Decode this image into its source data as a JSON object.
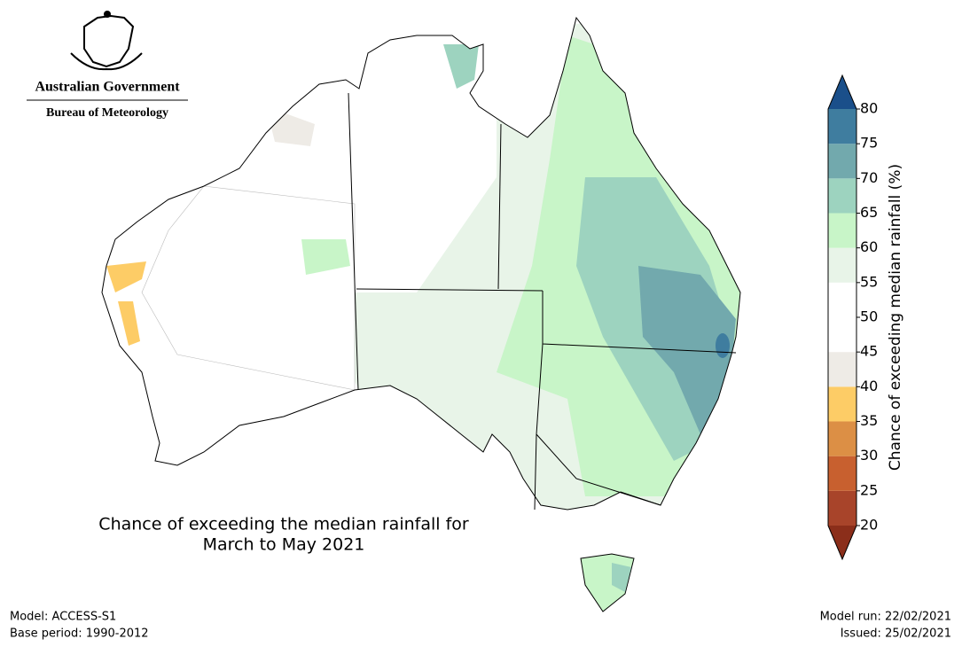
{
  "header": {
    "government": "Australian Government",
    "agency": "Bureau of Meteorology"
  },
  "map": {
    "title": [
      "Chance of exceeding the median rainfall for",
      "March to May 2021"
    ]
  },
  "colorbar": {
    "label": "Chance of exceeding median rainfall (%)",
    "lim": [
      20,
      80
    ],
    "ticks": [
      20,
      25,
      30,
      35,
      40,
      45,
      50,
      55,
      60,
      65,
      70,
      75,
      80
    ],
    "band_colors": [
      "#a8442a",
      "#c8602f",
      "#dc8f45",
      "#fdcc66",
      "#eeebe6",
      "#ffffff",
      "#ffffff",
      "#e8f4e8",
      "#c8f5c8",
      "#9dd3bf",
      "#72a9ad",
      "#3f7d9f"
    ],
    "under_color": "#8b2e1a",
    "over_color": "#1a4f8a"
  },
  "footer": {
    "model": "Model: ACCESS-S1",
    "base_period": "Base period: 1990-2012",
    "model_run": "Model run: 22/02/2021",
    "issued": "Issued: 25/02/2021"
  }
}
